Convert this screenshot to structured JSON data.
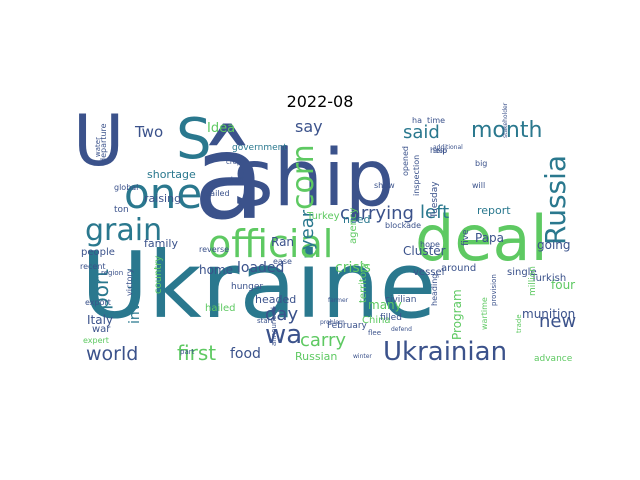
{
  "title": "2022-08",
  "words": [
    {
      "text": "Ukraine",
      "c": "#2a788e",
      "weight": 1.0
    },
    {
      "text": "ship",
      "c": "#3b528b",
      "weight": 0.9
    },
    {
      "text": "â",
      "c": "#3b528b",
      "weight": 0.85
    },
    {
      "text": "deal",
      "c": "#5ec962",
      "weight": 0.8
    },
    {
      "text": "U",
      "c": "#3b528b",
      "weight": 0.75
    },
    {
      "text": "S",
      "c": "#2a788e",
      "weight": 0.7
    },
    {
      "text": "official",
      "c": "#5ec962",
      "weight": 0.65
    },
    {
      "text": "one",
      "c": "#2a788e",
      "weight": 0.6
    },
    {
      "text": "grain",
      "c": "#2a788e",
      "weight": 0.55
    },
    {
      "text": "Russia",
      "c": "#2a788e",
      "weight": 0.55
    },
    {
      "text": "Ukrainian",
      "c": "#3b528b",
      "weight": 0.5
    },
    {
      "text": "corn",
      "c": "#5ec962",
      "weight": 0.45
    },
    {
      "text": "month",
      "c": "#2a788e",
      "weight": 0.45
    },
    {
      "text": "carrying",
      "c": "#3b528b",
      "weight": 0.42
    },
    {
      "text": "world",
      "c": "#3b528b",
      "weight": 0.4
    },
    {
      "text": "port",
      "c": "#2a788e",
      "weight": 0.4
    },
    {
      "text": "first",
      "c": "#5ec962",
      "weight": 0.38
    },
    {
      "text": "wa",
      "c": "#3b528b",
      "weight": 0.38
    },
    {
      "text": "year",
      "c": "#2a788e",
      "weight": 0.35
    },
    {
      "text": "said",
      "c": "#2a788e",
      "weight": 0.35
    },
    {
      "text": "left",
      "c": "#2a788e",
      "weight": 0.33
    },
    {
      "text": "say",
      "c": "#3b528b",
      "weight": 0.33
    },
    {
      "text": "carry",
      "c": "#5ec962",
      "weight": 0.32
    },
    {
      "text": "Two",
      "c": "#3b528b",
      "weight": 0.3
    },
    {
      "text": "day",
      "c": "#3b528b",
      "weight": 0.3
    },
    {
      "text": "new",
      "c": "#3b528b",
      "weight": 0.28
    },
    {
      "text": "invaded",
      "c": "#2a788e",
      "weight": 0.28
    },
    {
      "text": "crisis",
      "c": "#5ec962",
      "weight": 0.26
    },
    {
      "text": "loaded",
      "c": "#3b528b",
      "weight": 0.25
    },
    {
      "text": "food",
      "c": "#3b528b",
      "weight": 0.25
    },
    {
      "text": "Idea",
      "c": "#5ec962",
      "weight": 0.24
    },
    {
      "text": "Program",
      "c": "#5ec962",
      "weight": 0.22
    },
    {
      "text": "Papa",
      "c": "#3b528b",
      "weight": 0.22
    },
    {
      "text": "Cluster",
      "c": "#3b528b",
      "weight": 0.2
    },
    {
      "text": "going",
      "c": "#3b528b",
      "weight": 0.2
    },
    {
      "text": "four",
      "c": "#5ec962",
      "weight": 0.2
    },
    {
      "text": "report",
      "c": "#2a788e",
      "weight": 0.2
    },
    {
      "text": "Italy",
      "c": "#3b528b",
      "weight": 0.18
    },
    {
      "text": "home",
      "c": "#3b528b",
      "weight": 0.18
    },
    {
      "text": "Ran",
      "c": "#3b528b",
      "weight": 0.18
    },
    {
      "text": "headed",
      "c": "#3b528b",
      "weight": 0.17
    },
    {
      "text": "need",
      "c": "#2a788e",
      "weight": 0.17
    },
    {
      "text": "many",
      "c": "#5ec962",
      "weight": 0.17
    },
    {
      "text": "munition",
      "c": "#3b528b",
      "weight": 0.16
    },
    {
      "text": "Russian",
      "c": "#5ec962",
      "weight": 0.16
    },
    {
      "text": "family",
      "c": "#3b528b",
      "weight": 0.15
    },
    {
      "text": "raising",
      "c": "#3b528b",
      "weight": 0.15
    },
    {
      "text": "shortage",
      "c": "#2a788e",
      "weight": 0.15
    },
    {
      "text": "Turkey",
      "c": "#5ec962",
      "weight": 0.14
    },
    {
      "text": "China",
      "c": "#5ec962",
      "weight": 0.14
    },
    {
      "text": "hailed",
      "c": "#5ec962",
      "weight": 0.14
    },
    {
      "text": "Turkish",
      "c": "#3b528b",
      "weight": 0.13
    },
    {
      "text": "single",
      "c": "#3b528b",
      "weight": 0.13
    },
    {
      "text": "around",
      "c": "#3b528b",
      "weight": 0.13
    },
    {
      "text": "vessel",
      "c": "#3b528b",
      "weight": 0.13
    },
    {
      "text": "hunger",
      "c": "#3b528b",
      "weight": 0.12
    },
    {
      "text": "filled",
      "c": "#3b528b",
      "weight": 0.12
    },
    {
      "text": "civilian",
      "c": "#3b528b",
      "weight": 0.12
    },
    {
      "text": "war",
      "c": "#3b528b",
      "weight": 0.12
    },
    {
      "text": "people",
      "c": "#3b528b",
      "weight": 0.12
    },
    {
      "text": "February",
      "c": "#3b528b",
      "weight": 0.11
    },
    {
      "text": "government",
      "c": "#2a788e",
      "weight": 0.11
    },
    {
      "text": "global",
      "c": "#3b528b",
      "weight": 0.11
    },
    {
      "text": "ton",
      "c": "#3b528b",
      "weight": 0.11
    },
    {
      "text": "hope",
      "c": "#3b528b",
      "weight": 0.11
    },
    {
      "text": "country",
      "c": "#5ec962",
      "weight": 0.11
    },
    {
      "text": "victory",
      "c": "#3b528b",
      "weight": 0.1
    },
    {
      "text": "recent",
      "c": "#3b528b",
      "weight": 0.1
    },
    {
      "text": "export",
      "c": "#3b528b",
      "weight": 0.1
    },
    {
      "text": "expert",
      "c": "#5ec962",
      "weight": 0.1
    },
    {
      "text": "reverse",
      "c": "#3b528b",
      "weight": 0.1
    },
    {
      "text": "sailed",
      "c": "#3b528b",
      "weight": 0.1
    },
    {
      "text": "ease",
      "c": "#3b528b",
      "weight": 0.1
    },
    {
      "text": "announced",
      "c": "#3b528b",
      "weight": 0.1
    },
    {
      "text": "advance",
      "c": "#5ec962",
      "weight": 0.1
    },
    {
      "text": "heading",
      "c": "#3b528b",
      "weight": 0.1
    },
    {
      "text": "provision",
      "c": "#3b528b",
      "weight": 0.1
    },
    {
      "text": "territory",
      "c": "#5ec962",
      "weight": 0.1
    },
    {
      "text": "Tuesday",
      "c": "#3b528b",
      "weight": 0.1
    },
    {
      "text": "opened",
      "c": "#3b528b",
      "weight": 0.1
    },
    {
      "text": "inspection",
      "c": "#3b528b",
      "weight": 0.1
    },
    {
      "text": "blockade",
      "c": "#3b528b",
      "weight": 0.1
    },
    {
      "text": "agency",
      "c": "#5ec962",
      "weight": 0.1
    },
    {
      "text": "show",
      "c": "#3b528b",
      "weight": 0.1
    },
    {
      "text": "help",
      "c": "#3b528b",
      "weight": 0.1
    },
    {
      "text": "will",
      "c": "#3b528b",
      "weight": 0.1
    },
    {
      "text": "big",
      "c": "#3b528b",
      "weight": 0.1
    },
    {
      "text": "five",
      "c": "#3b528b",
      "weight": 0.1
    },
    {
      "text": "departure",
      "c": "#3b528b",
      "weight": 0.1
    },
    {
      "text": "water",
      "c": "#3b528b",
      "weight": 0.1
    },
    {
      "text": "region",
      "c": "#3b528b",
      "weight": 0.1
    },
    {
      "text": "start",
      "c": "#3b528b",
      "weight": 0.1
    },
    {
      "text": "part",
      "c": "#3b528b",
      "weight": 0.1
    },
    {
      "text": "problem",
      "c": "#3b528b",
      "weight": 0.1
    },
    {
      "text": "winter",
      "c": "#3b528b",
      "weight": 0.1
    },
    {
      "text": "additional",
      "c": "#3b528b",
      "weight": 0.1
    },
    {
      "text": "crop",
      "c": "#3b528b",
      "weight": 0.1
    },
    {
      "text": "asked",
      "c": "#3b528b",
      "weight": 0.1
    },
    {
      "text": "flee",
      "c": "#3b528b",
      "weight": 0.1
    },
    {
      "text": "defend",
      "c": "#3b528b",
      "weight": 0.1
    },
    {
      "text": "farmer",
      "c": "#3b528b",
      "weight": 0.1
    },
    {
      "text": "million",
      "c": "#5ec962",
      "weight": 0.1
    },
    {
      "text": "wartime",
      "c": "#5ec962",
      "weight": 0.1
    },
    {
      "text": "trade",
      "c": "#5ec962",
      "weight": 0.1
    },
    {
      "text": "ha",
      "c": "#3b528b",
      "weight": 0.1
    },
    {
      "text": "time",
      "c": "#3b528b",
      "weight": 0.1
    },
    {
      "text": "Stop",
      "c": "#3b528b",
      "weight": 0.1
    },
    {
      "text": "stakeholder",
      "c": "#3b528b",
      "weight": 0.1
    }
  ]
}
